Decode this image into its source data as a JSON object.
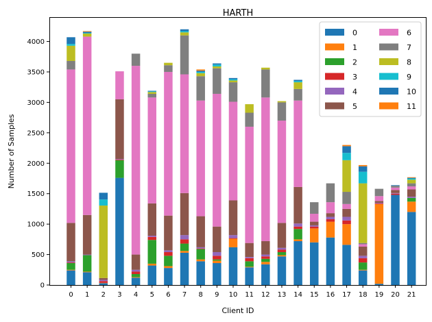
{
  "chart_data": {
    "type": "bar",
    "stacked": true,
    "title": "HARTH",
    "xlabel": "Client ID",
    "ylabel": "Number of Samples",
    "ylim": [
      0,
      4400
    ],
    "yticks": [
      0,
      500,
      1000,
      1500,
      2000,
      2500,
      3000,
      3500,
      4000
    ],
    "grid": false,
    "legend_placement": "top-right",
    "legend_columns": 2,
    "categories": [
      "0",
      "1",
      "2",
      "3",
      "4",
      "5",
      "6",
      "7",
      "8",
      "9",
      "10",
      "11",
      "12",
      "13",
      "14",
      "15",
      "16",
      "17",
      "18",
      "19",
      "20",
      "21"
    ],
    "series": [
      {
        "name": "0",
        "color": "#1f77b4",
        "values": [
          240,
          210,
          30,
          1760,
          120,
          320,
          280,
          530,
          390,
          360,
          620,
          290,
          340,
          470,
          720,
          700,
          780,
          660,
          240,
          20,
          1480,
          1200
        ]
      },
      {
        "name": "1",
        "color": "#ff7f0e",
        "values": [
          10,
          10,
          5,
          0,
          10,
          30,
          30,
          30,
          30,
          40,
          140,
          10,
          40,
          20,
          30,
          230,
          260,
          340,
          10,
          1310,
          0,
          170
        ]
      },
      {
        "name": "2",
        "color": "#2ca02c",
        "values": [
          110,
          270,
          0,
          290,
          50,
          390,
          170,
          120,
          170,
          20,
          0,
          90,
          50,
          50,
          170,
          0,
          0,
          0,
          120,
          0,
          0,
          60
        ]
      },
      {
        "name": "3",
        "color": "#d62728",
        "values": [
          10,
          0,
          30,
          10,
          40,
          50,
          60,
          70,
          10,
          60,
          10,
          50,
          40,
          40,
          40,
          30,
          40,
          60,
          70,
          10,
          20,
          0
        ]
      },
      {
        "name": "4",
        "color": "#9467bd",
        "values": [
          20,
          10,
          20,
          10,
          30,
          20,
          30,
          70,
          20,
          60,
          50,
          20,
          30,
          30,
          50,
          20,
          40,
          60,
          40,
          10,
          10,
          20
        ]
      },
      {
        "name": "5",
        "color": "#8c564b",
        "values": [
          630,
          650,
          30,
          980,
          250,
          530,
          570,
          690,
          510,
          420,
          570,
          230,
          220,
          410,
          600,
          60,
          60,
          130,
          150,
          30,
          50,
          120
        ]
      },
      {
        "name": "6",
        "color": "#e377c2",
        "values": [
          2520,
          2930,
          0,
          460,
          3100,
          1740,
          2360,
          1950,
          1900,
          2180,
          1620,
          1910,
          2360,
          1680,
          1420,
          130,
          180,
          80,
          40,
          80,
          40,
          50
        ]
      },
      {
        "name": "7",
        "color": "#7f7f7f",
        "values": [
          140,
          0,
          0,
          0,
          200,
          60,
          110,
          640,
          400,
          420,
          320,
          230,
          460,
          300,
          190,
          190,
          310,
          200,
          20,
          120,
          30,
          50
        ]
      },
      {
        "name": "8",
        "color": "#bcbd22",
        "values": [
          250,
          50,
          1190,
          0,
          0,
          30,
          40,
          50,
          50,
          30,
          30,
          140,
          30,
          20,
          110,
          0,
          0,
          520,
          980,
          0,
          0,
          60
        ]
      },
      {
        "name": "9",
        "color": "#17becf",
        "values": [
          30,
          10,
          100,
          0,
          0,
          10,
          0,
          20,
          20,
          30,
          20,
          0,
          0,
          0,
          20,
          0,
          0,
          120,
          190,
          0,
          0,
          20
        ]
      },
      {
        "name": "10",
        "color": "#1f77b4",
        "values": [
          110,
          20,
          110,
          0,
          0,
          10,
          0,
          30,
          20,
          20,
          20,
          0,
          0,
          0,
          20,
          0,
          0,
          110,
          90,
          0,
          10,
          10
        ]
      },
      {
        "name": "11",
        "color": "#ff7f0e",
        "values": [
          0,
          10,
          0,
          0,
          0,
          0,
          0,
          0,
          20,
          0,
          0,
          0,
          0,
          0,
          0,
          0,
          0,
          20,
          20,
          0,
          0,
          10
        ]
      }
    ]
  }
}
